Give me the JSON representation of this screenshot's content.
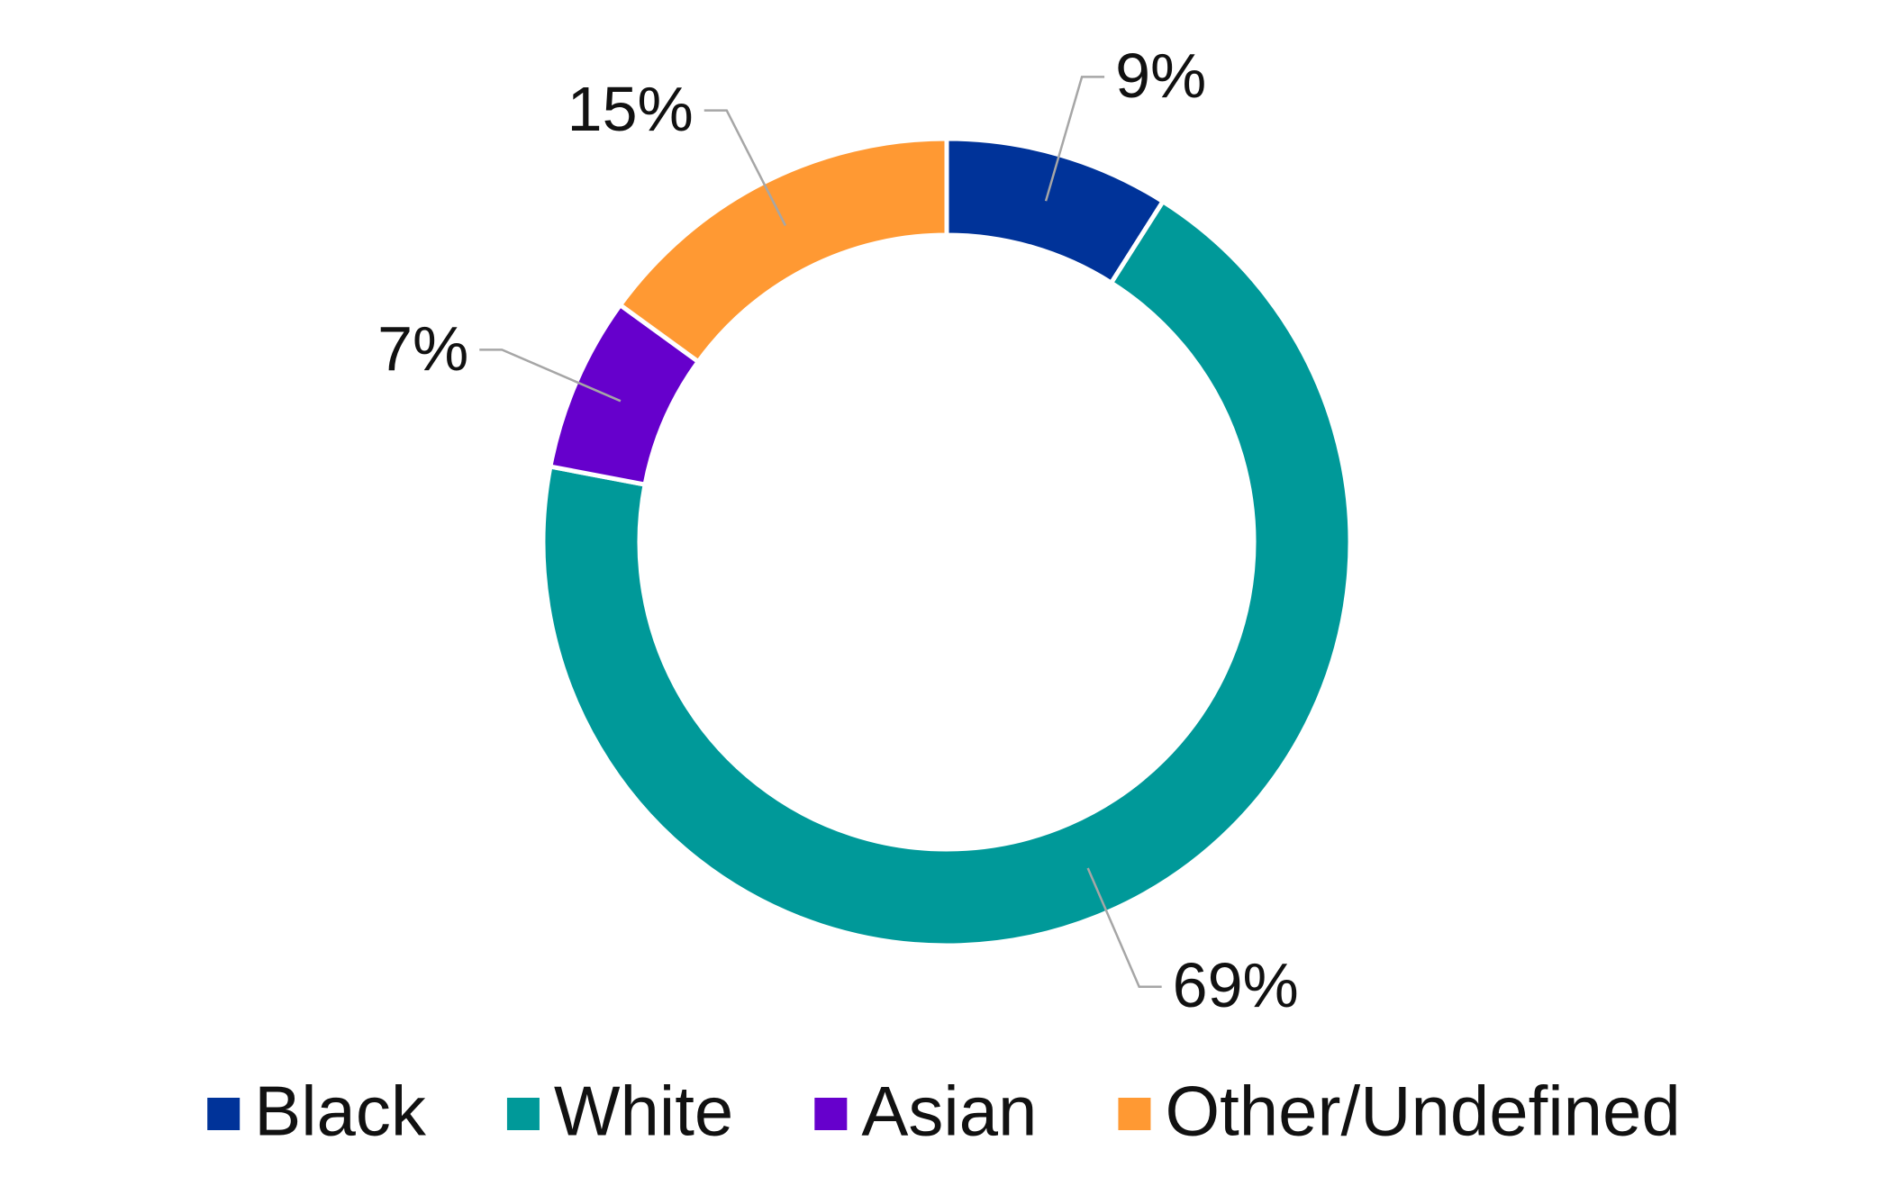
{
  "chart_data": {
    "type": "pie",
    "categories": [
      "Black",
      "White",
      "Asian",
      "Other/Undefined"
    ],
    "values": [
      9,
      69,
      7,
      15
    ],
    "value_labels": [
      "9%",
      "69%",
      "7%",
      "15%"
    ],
    "colors": [
      "#003399",
      "#009999",
      "#6600cc",
      "#ff9933"
    ],
    "donut": true,
    "legend": "bottom"
  }
}
